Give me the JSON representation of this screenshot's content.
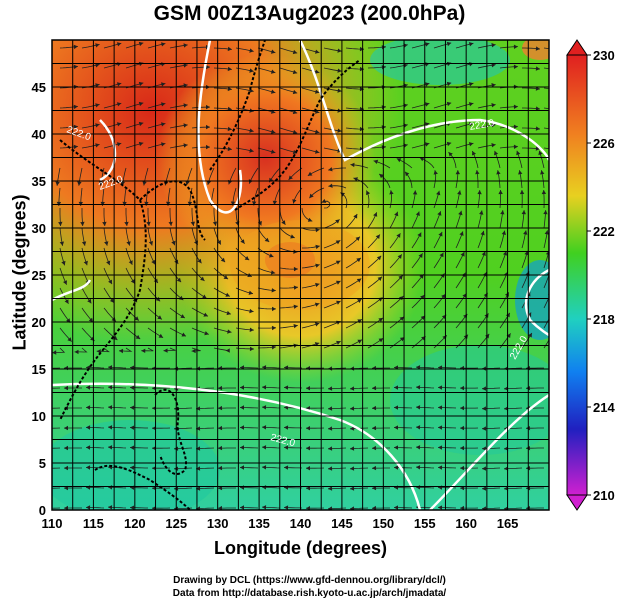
{
  "title": "GSM 00Z13Aug2023 (200.0hPa)",
  "xlabel": "Longitude (degrees)",
  "ylabel": "Latitude  (degrees)",
  "credits": [
    "Drawing by DCL (https://www.gfd-dennou.org/library/dcl/)",
    "Data from http://database.rish.kyoto-u.ac.jp/arch/jmadata/"
  ],
  "x_ticks": [
    "110",
    "115",
    "120",
    "125",
    "130",
    "135",
    "140",
    "145",
    "150",
    "155",
    "160",
    "165"
  ],
  "y_ticks": [
    "0",
    "5",
    "10",
    "15",
    "20",
    "25",
    "30",
    "35",
    "40",
    "45"
  ],
  "colorbar": {
    "labels": [
      "230",
      "226",
      "222",
      "218",
      "214",
      "210"
    ],
    "colors": [
      "#d92020",
      "#f08020",
      "#e8d020",
      "#40d020",
      "#10d0c0",
      "#1060f0",
      "#2020c0",
      "#d020d0"
    ]
  },
  "contour_labels": [
    "222.0",
    "222.0",
    "222.0",
    "222.0",
    "222.0"
  ],
  "chart_data": {
    "type": "map",
    "field": "temperature with streamlines",
    "level": "200.0hPa",
    "xlim": [
      110,
      170
    ],
    "ylim": [
      0,
      50
    ],
    "color_range": [
      210,
      230
    ]
  }
}
